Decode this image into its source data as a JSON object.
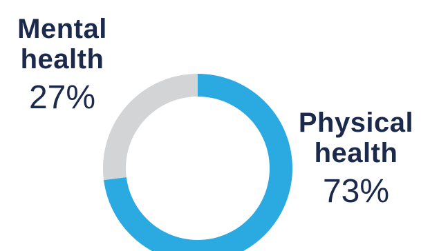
{
  "chart_data": {
    "type": "pie",
    "donut": true,
    "slices": [
      {
        "label_lines": [
          "Physical",
          "health"
        ],
        "value": 73,
        "value_text": "73%",
        "color": "#2ba9e1"
      },
      {
        "label_lines": [
          "Mental",
          "health"
        ],
        "value": 27,
        "value_text": "27%",
        "color": "#d3d4d6"
      }
    ],
    "start_angle_deg": 0,
    "direction": "clockwise",
    "text_color": "#1b2a4b"
  }
}
